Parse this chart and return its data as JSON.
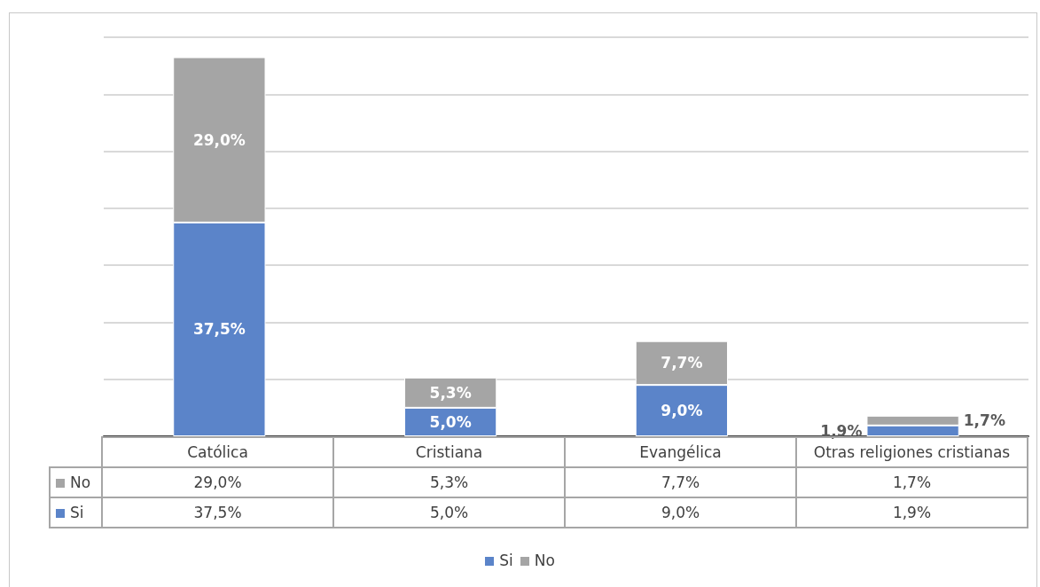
{
  "chart_data": {
    "type": "bar",
    "stacked": true,
    "categories": [
      "Católica",
      "Cristiana",
      "Evangélica",
      "Otras religiones cristianas"
    ],
    "series": [
      {
        "name": "Si",
        "color": "#5b84c9",
        "values": [
          37.5,
          5.0,
          9.0,
          1.9
        ],
        "value_labels": [
          "37,5%",
          "5,0%",
          "9,0%",
          "1,9%"
        ]
      },
      {
        "name": "No",
        "color": "#a5a5a5",
        "values": [
          29.0,
          5.3,
          7.7,
          1.7
        ],
        "value_labels": [
          "29,0%",
          "5,3%",
          "7,7%",
          "1,7%"
        ]
      }
    ],
    "ylim": [
      0,
      70
    ],
    "yticks": [
      {
        "value": 0,
        "label": null
      },
      {
        "value": 10,
        "label": null
      },
      {
        "value": 20,
        "label": null
      },
      {
        "value": 30,
        "label": null
      },
      {
        "value": 40,
        "label": null
      },
      {
        "value": 50,
        "label": null
      },
      {
        "value": 60,
        "label": null
      },
      {
        "value": 70,
        "label": null
      }
    ],
    "grid": "y",
    "legend": "bottom",
    "tick_labels": "x"
  }
}
